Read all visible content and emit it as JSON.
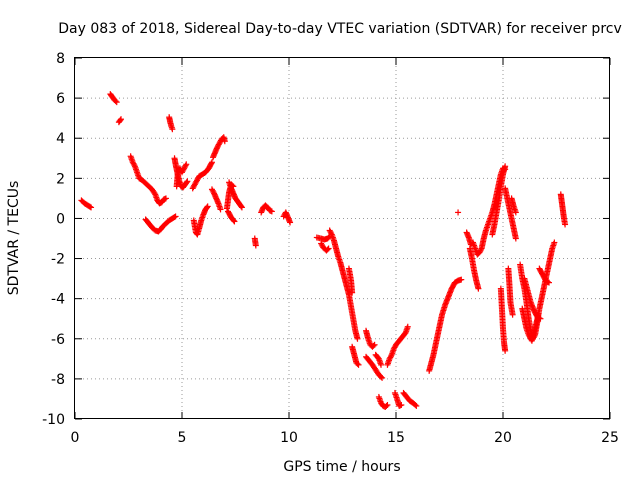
{
  "chart_data": {
    "type": "scatter",
    "title": "Day 083 of 2018, Sidereal Day-to-day VTEC variation (SDTVAR) for receiver prcv",
    "xlabel": "GPS time / hours",
    "ylabel": "SDTVAR / TECUs",
    "xlim": [
      0,
      25
    ],
    "ylim": [
      -10,
      8
    ],
    "xticks": [
      "0",
      "5",
      "10",
      "15",
      "20",
      "25"
    ],
    "yticks": [
      "-10",
      "-8",
      "-6",
      "-4",
      "-2",
      "0",
      "2",
      "4",
      "6",
      "8"
    ],
    "grid": true,
    "marker": "plus",
    "color": "#ff0000",
    "segments": [
      [
        [
          0.3,
          0.9
        ],
        [
          0.45,
          0.75
        ],
        [
          0.6,
          0.65
        ],
        [
          0.75,
          0.55
        ]
      ],
      [
        [
          1.65,
          6.2
        ],
        [
          1.75,
          6.05
        ],
        [
          1.85,
          5.9
        ],
        [
          1.95,
          5.8
        ]
      ],
      [
        [
          2.05,
          4.8
        ],
        [
          2.15,
          4.95
        ]
      ],
      [
        [
          2.6,
          3.1
        ],
        [
          2.7,
          2.8
        ],
        [
          2.8,
          2.6
        ],
        [
          2.9,
          2.3
        ],
        [
          3.0,
          2.0
        ],
        [
          3.15,
          1.9
        ],
        [
          3.3,
          1.75
        ],
        [
          3.45,
          1.6
        ],
        [
          3.6,
          1.45
        ],
        [
          3.75,
          1.2
        ],
        [
          3.85,
          0.9
        ],
        [
          3.95,
          0.75
        ],
        [
          4.05,
          0.8
        ],
        [
          4.15,
          0.95
        ],
        [
          4.25,
          1.0
        ]
      ],
      [
        [
          3.3,
          -0.05
        ],
        [
          3.45,
          -0.25
        ],
        [
          3.6,
          -0.45
        ],
        [
          3.75,
          -0.6
        ],
        [
          3.9,
          -0.65
        ],
        [
          4.0,
          -0.55
        ],
        [
          4.1,
          -0.4
        ],
        [
          4.25,
          -0.25
        ],
        [
          4.4,
          -0.1
        ],
        [
          4.55,
          0.0
        ],
        [
          4.7,
          0.1
        ]
      ],
      [
        [
          4.4,
          5.05
        ],
        [
          4.45,
          4.8
        ],
        [
          4.5,
          4.6
        ],
        [
          4.55,
          4.45
        ]
      ],
      [
        [
          4.65,
          3.0
        ],
        [
          4.72,
          2.6
        ],
        [
          4.8,
          2.2
        ],
        [
          4.88,
          1.85
        ],
        [
          4.95,
          1.6
        ],
        [
          5.05,
          1.55
        ],
        [
          5.15,
          1.7
        ],
        [
          5.25,
          1.85
        ]
      ],
      [
        [
          4.75,
          1.6
        ],
        [
          4.8,
          2.2
        ],
        [
          4.9,
          2.5
        ],
        [
          5.0,
          2.3
        ],
        [
          5.1,
          2.5
        ],
        [
          5.2,
          2.7
        ]
      ],
      [
        [
          5.55,
          -0.1
        ],
        [
          5.6,
          -0.4
        ],
        [
          5.65,
          -0.7
        ],
        [
          5.72,
          -0.8
        ],
        [
          5.8,
          -0.5
        ],
        [
          5.9,
          -0.1
        ],
        [
          6.0,
          0.2
        ],
        [
          6.1,
          0.45
        ],
        [
          6.2,
          0.6
        ]
      ],
      [
        [
          5.5,
          1.5
        ],
        [
          5.6,
          1.7
        ],
        [
          5.7,
          1.9
        ],
        [
          5.8,
          2.1
        ],
        [
          5.95,
          2.2
        ],
        [
          6.1,
          2.3
        ],
        [
          6.25,
          2.5
        ],
        [
          6.4,
          2.8
        ]
      ],
      [
        [
          6.45,
          3.05
        ],
        [
          6.55,
          3.3
        ],
        [
          6.65,
          3.55
        ],
        [
          6.75,
          3.75
        ],
        [
          6.85,
          3.95
        ],
        [
          6.95,
          4.05
        ],
        [
          7.0,
          3.85
        ]
      ],
      [
        [
          6.4,
          1.45
        ],
        [
          6.5,
          1.25
        ],
        [
          6.6,
          1.0
        ],
        [
          6.7,
          0.75
        ],
        [
          6.8,
          0.45
        ]
      ],
      [
        [
          7.2,
          1.8
        ],
        [
          7.3,
          1.5
        ],
        [
          7.4,
          1.25
        ],
        [
          7.5,
          1.0
        ],
        [
          7.6,
          0.85
        ],
        [
          7.7,
          0.7
        ],
        [
          7.8,
          0.55
        ]
      ],
      [
        [
          7.1,
          0.5
        ],
        [
          7.2,
          1.3
        ],
        [
          7.3,
          1.7
        ],
        [
          7.4,
          1.6
        ]
      ],
      [
        [
          7.15,
          0.35
        ],
        [
          7.3,
          0.05
        ],
        [
          7.45,
          -0.15
        ]
      ],
      [
        [
          8.4,
          -1.0
        ],
        [
          8.45,
          -1.35
        ]
      ],
      [
        [
          8.7,
          0.3
        ],
        [
          8.8,
          0.55
        ],
        [
          8.9,
          0.65
        ],
        [
          9.0,
          0.55
        ],
        [
          9.1,
          0.4
        ],
        [
          9.2,
          0.35
        ]
      ],
      [
        [
          9.75,
          0.1
        ],
        [
          9.85,
          0.3
        ],
        [
          9.95,
          0.05
        ],
        [
          10.05,
          -0.2
        ]
      ],
      [
        [
          11.3,
          -0.95
        ],
        [
          11.5,
          -1.0
        ],
        [
          11.65,
          -1.05
        ],
        [
          11.8,
          -1.0
        ],
        [
          11.9,
          -0.9
        ]
      ],
      [
        [
          11.5,
          -1.25
        ],
        [
          11.6,
          -1.45
        ],
        [
          11.75,
          -1.6
        ],
        [
          11.85,
          -1.5
        ]
      ],
      [
        [
          11.9,
          -0.6
        ],
        [
          12.0,
          -0.8
        ],
        [
          12.1,
          -1.1
        ],
        [
          12.2,
          -1.5
        ],
        [
          12.3,
          -1.9
        ],
        [
          12.4,
          -2.2
        ],
        [
          12.5,
          -2.6
        ],
        [
          12.6,
          -3.0
        ],
        [
          12.7,
          -3.4
        ],
        [
          12.8,
          -3.8
        ],
        [
          12.9,
          -4.4
        ],
        [
          13.0,
          -5.0
        ],
        [
          13.1,
          -5.6
        ],
        [
          13.2,
          -6.0
        ]
      ],
      [
        [
          12.8,
          -2.5
        ],
        [
          12.9,
          -3.1
        ],
        [
          12.95,
          -3.7
        ]
      ],
      [
        [
          12.95,
          -6.4
        ],
        [
          13.05,
          -6.8
        ],
        [
          13.15,
          -7.2
        ],
        [
          13.25,
          -7.3
        ]
      ],
      [
        [
          13.6,
          -5.6
        ],
        [
          13.7,
          -6.0
        ],
        [
          13.8,
          -6.3
        ],
        [
          13.9,
          -6.4
        ],
        [
          14.0,
          -6.3
        ]
      ],
      [
        [
          13.6,
          -6.9
        ],
        [
          13.75,
          -7.1
        ],
        [
          13.9,
          -7.3
        ],
        [
          14.05,
          -7.55
        ],
        [
          14.2,
          -7.8
        ],
        [
          14.35,
          -7.95
        ]
      ],
      [
        [
          14.05,
          -6.8
        ],
        [
          14.2,
          -7.0
        ],
        [
          14.3,
          -7.3
        ]
      ],
      [
        [
          14.2,
          -8.9
        ],
        [
          14.3,
          -9.2
        ],
        [
          14.4,
          -9.35
        ],
        [
          14.5,
          -9.4
        ],
        [
          14.6,
          -9.3
        ]
      ],
      [
        [
          14.6,
          -7.3
        ],
        [
          14.7,
          -7.0
        ],
        [
          14.8,
          -6.8
        ],
        [
          14.9,
          -6.5
        ],
        [
          15.0,
          -6.3
        ],
        [
          15.15,
          -6.1
        ],
        [
          15.3,
          -5.9
        ],
        [
          15.45,
          -5.7
        ],
        [
          15.55,
          -5.4
        ]
      ],
      [
        [
          14.95,
          -8.7
        ],
        [
          15.05,
          -9.0
        ],
        [
          15.15,
          -9.35
        ],
        [
          15.25,
          -9.3
        ]
      ],
      [
        [
          15.35,
          -8.7
        ],
        [
          15.5,
          -8.9
        ],
        [
          15.65,
          -9.1
        ],
        [
          15.8,
          -9.2
        ],
        [
          15.95,
          -9.35
        ]
      ],
      [
        [
          16.55,
          -7.6
        ],
        [
          16.65,
          -7.2
        ],
        [
          16.75,
          -6.8
        ],
        [
          16.85,
          -6.3
        ],
        [
          16.95,
          -5.8
        ],
        [
          17.05,
          -5.3
        ],
        [
          17.15,
          -4.8
        ],
        [
          17.3,
          -4.3
        ],
        [
          17.45,
          -3.9
        ],
        [
          17.6,
          -3.5
        ],
        [
          17.75,
          -3.2
        ],
        [
          17.9,
          -3.1
        ],
        [
          18.05,
          -3.05
        ]
      ],
      [
        [
          17.9,
          0.3
        ]
      ],
      [
        [
          18.3,
          -0.7
        ],
        [
          18.4,
          -0.95
        ],
        [
          18.5,
          -1.3
        ]
      ],
      [
        [
          18.45,
          -1.5
        ],
        [
          18.55,
          -2.0
        ],
        [
          18.65,
          -2.6
        ],
        [
          18.75,
          -3.1
        ],
        [
          18.85,
          -3.5
        ]
      ],
      [
        [
          18.6,
          -1.2
        ],
        [
          18.7,
          -1.5
        ],
        [
          18.8,
          -1.8
        ],
        [
          18.9,
          -1.7
        ],
        [
          19.0,
          -1.5
        ],
        [
          19.1,
          -1.0
        ],
        [
          19.2,
          -0.6
        ],
        [
          19.3,
          -0.3
        ],
        [
          19.4,
          0.0
        ],
        [
          19.5,
          0.3
        ],
        [
          19.6,
          0.7
        ],
        [
          19.7,
          1.2
        ],
        [
          19.8,
          1.7
        ],
        [
          19.9,
          2.2
        ],
        [
          20.0,
          2.5
        ],
        [
          20.1,
          2.45
        ]
      ],
      [
        [
          19.5,
          -0.8
        ],
        [
          19.6,
          -0.3
        ],
        [
          19.7,
          0.3
        ],
        [
          19.8,
          0.9
        ],
        [
          19.9,
          1.6
        ],
        [
          20.0,
          2.2
        ],
        [
          20.1,
          2.6
        ]
      ],
      [
        [
          19.9,
          -3.5
        ],
        [
          19.95,
          -4.5
        ],
        [
          20.0,
          -5.5
        ],
        [
          20.05,
          -6.2
        ],
        [
          20.1,
          -6.6
        ]
      ],
      [
        [
          20.1,
          1.5
        ],
        [
          20.2,
          1.0
        ],
        [
          20.3,
          0.5
        ],
        [
          20.4,
          0.0
        ],
        [
          20.5,
          -0.5
        ],
        [
          20.6,
          -1.0
        ]
      ],
      [
        [
          20.25,
          -2.5
        ],
        [
          20.3,
          -3.3
        ],
        [
          20.35,
          -4.2
        ],
        [
          20.45,
          -4.8
        ]
      ],
      [
        [
          20.4,
          1.0
        ],
        [
          20.5,
          0.6
        ],
        [
          20.6,
          0.3
        ]
      ],
      [
        [
          20.8,
          -2.3
        ],
        [
          20.9,
          -3.0
        ],
        [
          21.0,
          -3.5
        ],
        [
          21.1,
          -4.2
        ],
        [
          21.2,
          -5.0
        ],
        [
          21.3,
          -5.6
        ],
        [
          21.4,
          -6.0
        ],
        [
          21.5,
          -5.8
        ],
        [
          21.6,
          -5.2
        ],
        [
          21.7,
          -4.5
        ],
        [
          21.8,
          -4.0
        ],
        [
          21.9,
          -3.5
        ],
        [
          22.0,
          -3.0
        ],
        [
          22.1,
          -2.5
        ],
        [
          22.2,
          -2.0
        ],
        [
          22.3,
          -1.5
        ],
        [
          22.4,
          -1.2
        ]
      ],
      [
        [
          20.9,
          -4.5
        ],
        [
          21.0,
          -5.0
        ],
        [
          21.1,
          -5.5
        ],
        [
          21.2,
          -5.8
        ],
        [
          21.35,
          -6.1
        ],
        [
          21.5,
          -5.5
        ],
        [
          21.65,
          -4.8
        ]
      ],
      [
        [
          21.0,
          -3.0
        ],
        [
          21.15,
          -3.6
        ],
        [
          21.3,
          -4.2
        ],
        [
          21.45,
          -4.6
        ],
        [
          21.6,
          -4.9
        ],
        [
          21.75,
          -5.0
        ]
      ],
      [
        [
          21.7,
          -2.5
        ],
        [
          21.85,
          -2.8
        ],
        [
          22.0,
          -3.1
        ],
        [
          22.15,
          -3.2
        ]
      ],
      [
        [
          22.7,
          1.2
        ],
        [
          22.75,
          0.8
        ],
        [
          22.8,
          0.4
        ],
        [
          22.85,
          0.0
        ],
        [
          22.9,
          -0.3
        ]
      ]
    ]
  }
}
